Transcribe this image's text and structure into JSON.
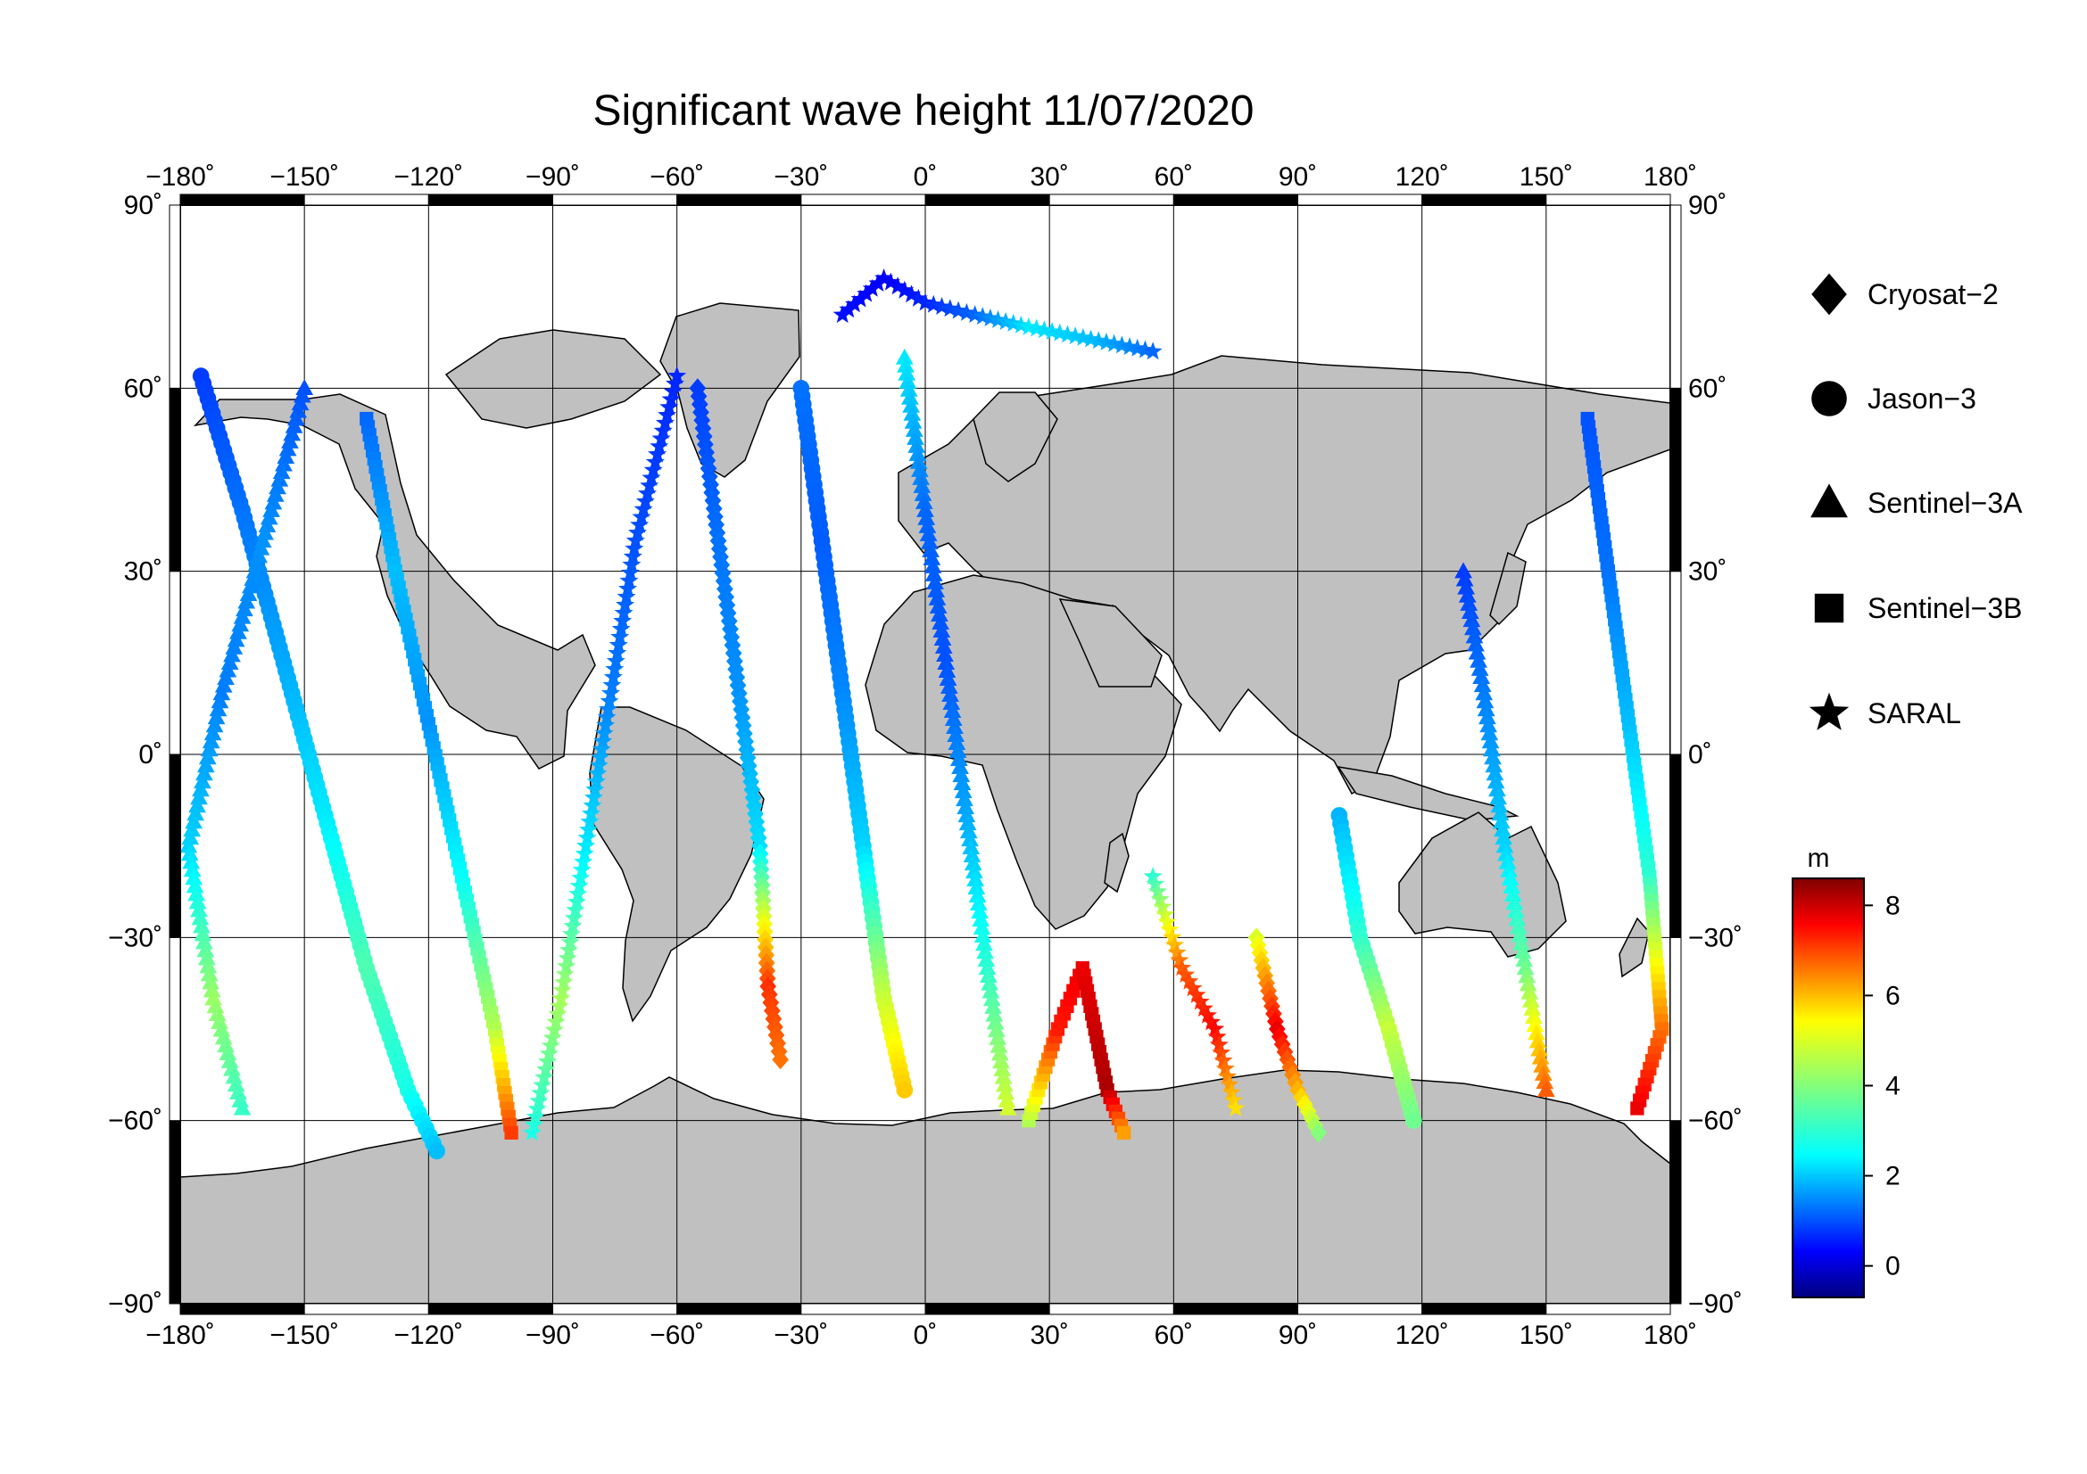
{
  "title": "Significant wave height 11/07/2020",
  "map": {
    "projection": "equirectangular",
    "lon_range": [
      -180,
      180
    ],
    "lat_range": [
      -90,
      90
    ],
    "grid": true,
    "land_color": "#c0c0c0",
    "ocean_color": "#ffffff",
    "lon_ticks": [
      -180,
      -150,
      -120,
      -90,
      -60,
      -30,
      0,
      30,
      60,
      90,
      120,
      150,
      180
    ],
    "lat_ticks": [
      -90,
      -60,
      -30,
      0,
      30,
      60,
      90
    ],
    "lon_tick_labels": [
      "−180˚",
      "−150˚",
      "−120˚",
      "−90˚",
      "−60˚",
      "−30˚",
      "0˚",
      "30˚",
      "60˚",
      "90˚",
      "120˚",
      "150˚",
      "180˚"
    ],
    "lat_tick_labels": [
      "−90˚",
      "−60˚",
      "−30˚",
      "0˚",
      "30˚",
      "60˚",
      "90˚"
    ]
  },
  "legend": {
    "placement": "right",
    "items": [
      {
        "label": "Cryosat−2",
        "symbol": "diamond"
      },
      {
        "label": "Jason−3",
        "symbol": "circle"
      },
      {
        "label": "Sentinel−3A",
        "symbol": "triangle"
      },
      {
        "label": "Sentinel−3B",
        "symbol": "square"
      },
      {
        "label": "SARAL",
        "symbol": "star"
      }
    ]
  },
  "colorbar": {
    "unit": "m",
    "range": [
      -0.7,
      8.6
    ],
    "ticks": [
      0,
      2,
      4,
      6,
      8
    ],
    "tick_labels": [
      "0",
      "2",
      "4",
      "6",
      "8"
    ],
    "colormap": "jet"
  },
  "tracks": [
    {
      "satellite": "Jason-3",
      "symbol": "circle",
      "points": [
        [
          -175,
          62,
          1.0
        ],
        [
          -165,
          40,
          1.5
        ],
        [
          -155,
          15,
          2.0
        ],
        [
          -145,
          -10,
          2.6
        ],
        [
          -135,
          -35,
          3.5
        ],
        [
          -125,
          -55,
          3.0
        ],
        [
          -118,
          -65,
          2.2
        ]
      ]
    },
    {
      "satellite": "Sentinel-3A",
      "symbol": "triangle",
      "points": [
        [
          -150,
          60,
          1.2
        ],
        [
          -160,
          35,
          1.8
        ],
        [
          -170,
          10,
          1.6
        ],
        [
          -178,
          -15,
          2.4
        ],
        [
          -172,
          -40,
          4.2
        ],
        [
          -165,
          -58,
          3.3
        ]
      ]
    },
    {
      "satellite": "Sentinel-3B",
      "symbol": "square",
      "points": [
        [
          -135,
          55,
          1.4
        ],
        [
          -128,
          30,
          2.2
        ],
        [
          -120,
          5,
          1.8
        ],
        [
          -112,
          -20,
          2.8
        ],
        [
          -104,
          -45,
          4.4
        ],
        [
          -100,
          -62,
          6.9
        ]
      ]
    },
    {
      "satellite": "SARAL",
      "symbol": "star",
      "points": [
        [
          -95,
          -62,
          3.0
        ],
        [
          -88,
          -40,
          4.3
        ],
        [
          -82,
          -15,
          2.6
        ],
        [
          -76,
          10,
          1.6
        ],
        [
          -70,
          35,
          1.2
        ],
        [
          -60,
          62,
          0.8
        ]
      ]
    },
    {
      "satellite": "Cryosat-2",
      "symbol": "diamond",
      "points": [
        [
          -55,
          60,
          1.0
        ],
        [
          -50,
          35,
          1.5
        ],
        [
          -45,
          10,
          1.8
        ],
        [
          -40,
          -15,
          2.5
        ],
        [
          -38,
          -38,
          7.0
        ],
        [
          -35,
          -50,
          6.4
        ]
      ]
    },
    {
      "satellite": "Jason-3",
      "symbol": "circle",
      "points": [
        [
          -30,
          60,
          1.5
        ],
        [
          -25,
          35,
          1.3
        ],
        [
          -20,
          10,
          1.7
        ],
        [
          -15,
          -15,
          2.4
        ],
        [
          -10,
          -40,
          4.6
        ],
        [
          -5,
          -55,
          5.6
        ]
      ]
    },
    {
      "satellite": "Sentinel-3A",
      "symbol": "triangle",
      "points": [
        [
          -5,
          65,
          2.6
        ],
        [
          0,
          40,
          1.4
        ],
        [
          5,
          15,
          1.2
        ],
        [
          10,
          -10,
          2.0
        ],
        [
          15,
          -35,
          3.2
        ],
        [
          20,
          -58,
          4.7
        ]
      ]
    },
    {
      "satellite": "Sentinel-3B",
      "symbol": "square",
      "points": [
        [
          25,
          -60,
          4.4
        ],
        [
          32,
          -45,
          7.2
        ],
        [
          38,
          -35,
          7.6
        ],
        [
          44,
          -55,
          8.2
        ],
        [
          48,
          -62,
          6.0
        ]
      ]
    },
    {
      "satellite": "SARAL",
      "symbol": "star",
      "points": [
        [
          55,
          -20,
          3.2
        ],
        [
          62,
          -35,
          6.6
        ],
        [
          70,
          -45,
          7.4
        ],
        [
          75,
          -58,
          5.4
        ]
      ]
    },
    {
      "satellite": "Cryosat-2",
      "symbol": "diamond",
      "points": [
        [
          80,
          -30,
          4.8
        ],
        [
          85,
          -45,
          7.6
        ],
        [
          90,
          -55,
          5.8
        ],
        [
          95,
          -62,
          4.0
        ]
      ]
    },
    {
      "satellite": "Jason-3",
      "symbol": "circle",
      "points": [
        [
          100,
          -10,
          2.1
        ],
        [
          105,
          -30,
          3.2
        ],
        [
          112,
          -45,
          4.6
        ],
        [
          118,
          -60,
          3.8
        ]
      ]
    },
    {
      "satellite": "Sentinel-3A",
      "symbol": "triangle",
      "points": [
        [
          130,
          30,
          1.0
        ],
        [
          135,
          10,
          1.6
        ],
        [
          140,
          -15,
          2.4
        ],
        [
          145,
          -35,
          3.8
        ],
        [
          150,
          -55,
          6.6
        ]
      ]
    },
    {
      "satellite": "Sentinel-3B",
      "symbol": "square",
      "points": [
        [
          160,
          55,
          1.2
        ],
        [
          165,
          30,
          1.5
        ],
        [
          170,
          5,
          2.2
        ],
        [
          175,
          -20,
          3.2
        ],
        [
          178,
          -45,
          6.4
        ],
        [
          172,
          -58,
          7.6
        ]
      ]
    },
    {
      "satellite": "SARAL",
      "symbol": "star",
      "points": [
        [
          -20,
          72,
          0.6
        ],
        [
          -10,
          78,
          0.4
        ],
        [
          0,
          74,
          0.8
        ],
        [
          12,
          72,
          1.4
        ],
        [
          25,
          70,
          2.6
        ],
        [
          40,
          68,
          2.2
        ],
        [
          55,
          66,
          1.4
        ]
      ]
    }
  ]
}
